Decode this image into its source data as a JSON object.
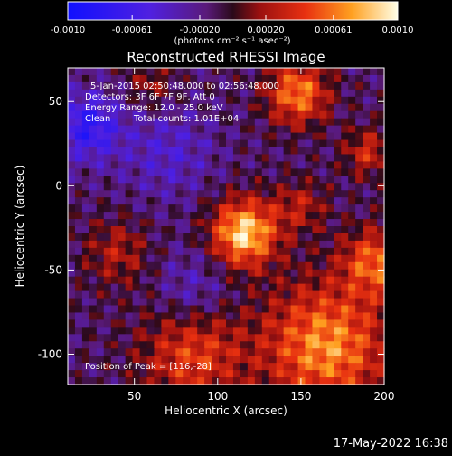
{
  "chart_data": {
    "type": "heatmap",
    "title": "Reconstructed RHESSI Image",
    "xlabel": "Heliocentric X (arcsec)",
    "ylabel": "Heliocentric Y (arcsec)",
    "xlim": [
      10,
      200
    ],
    "ylim": [
      -118,
      70
    ],
    "xticks": [
      50,
      100,
      150,
      200
    ],
    "yticks": [
      50,
      0,
      -50,
      -100
    ],
    "colorbar": {
      "min": -0.001,
      "max": 0.001,
      "ticks": [
        "-0.0010",
        "-0.00061",
        "-0.00020",
        "0.00020",
        "0.00061",
        "0.0010"
      ],
      "tick_values": [
        -0.001,
        -0.00061,
        -0.0002,
        0.0002,
        0.00061,
        0.001
      ],
      "unit_label": "(photons cm⁻² s⁻¹ asec⁻²)"
    },
    "annotations": {
      "time_range": "5-Jan-2015 02:50:48.000 to 02:56:48.000",
      "detectors": "Detectors: 3F 6F 7F 9F, Att 0",
      "energy": "Energy Range: 12.0 - 25.0 keV",
      "method": "Clean",
      "counts": "Total counts: 1.01E+04",
      "peak": "Position of Peak = [116,-28]"
    },
    "peak": [
      116,
      -28
    ],
    "sources": [
      {
        "x": 116,
        "y": -28,
        "amp": 0.001,
        "sigma": 14
      },
      {
        "x": 148,
        "y": 55,
        "amp": 0.00075,
        "sigma": 13
      },
      {
        "x": 150,
        "y": -12,
        "amp": 0.00035,
        "sigma": 11
      },
      {
        "x": 165,
        "y": -95,
        "amp": 0.0008,
        "sigma": 26
      },
      {
        "x": 85,
        "y": -100,
        "amp": 0.00055,
        "sigma": 22
      },
      {
        "x": 195,
        "y": -45,
        "amp": 0.00065,
        "sigma": 14
      },
      {
        "x": 190,
        "y": 20,
        "amp": 0.00045,
        "sigma": 10
      },
      {
        "x": 40,
        "y": -40,
        "amp": 0.00035,
        "sigma": 14
      },
      {
        "x": 60,
        "y": 60,
        "amp": 0.0003,
        "sigma": 10
      },
      {
        "x": 22,
        "y": 35,
        "amp": -0.0006,
        "sigma": 14
      },
      {
        "x": 70,
        "y": 20,
        "amp": -0.0003,
        "sigma": 20
      },
      {
        "x": 85,
        "y": -62,
        "amp": -0.0003,
        "sigma": 16
      }
    ]
  },
  "footer": {
    "timestamp": "17-May-2022 16:38"
  }
}
